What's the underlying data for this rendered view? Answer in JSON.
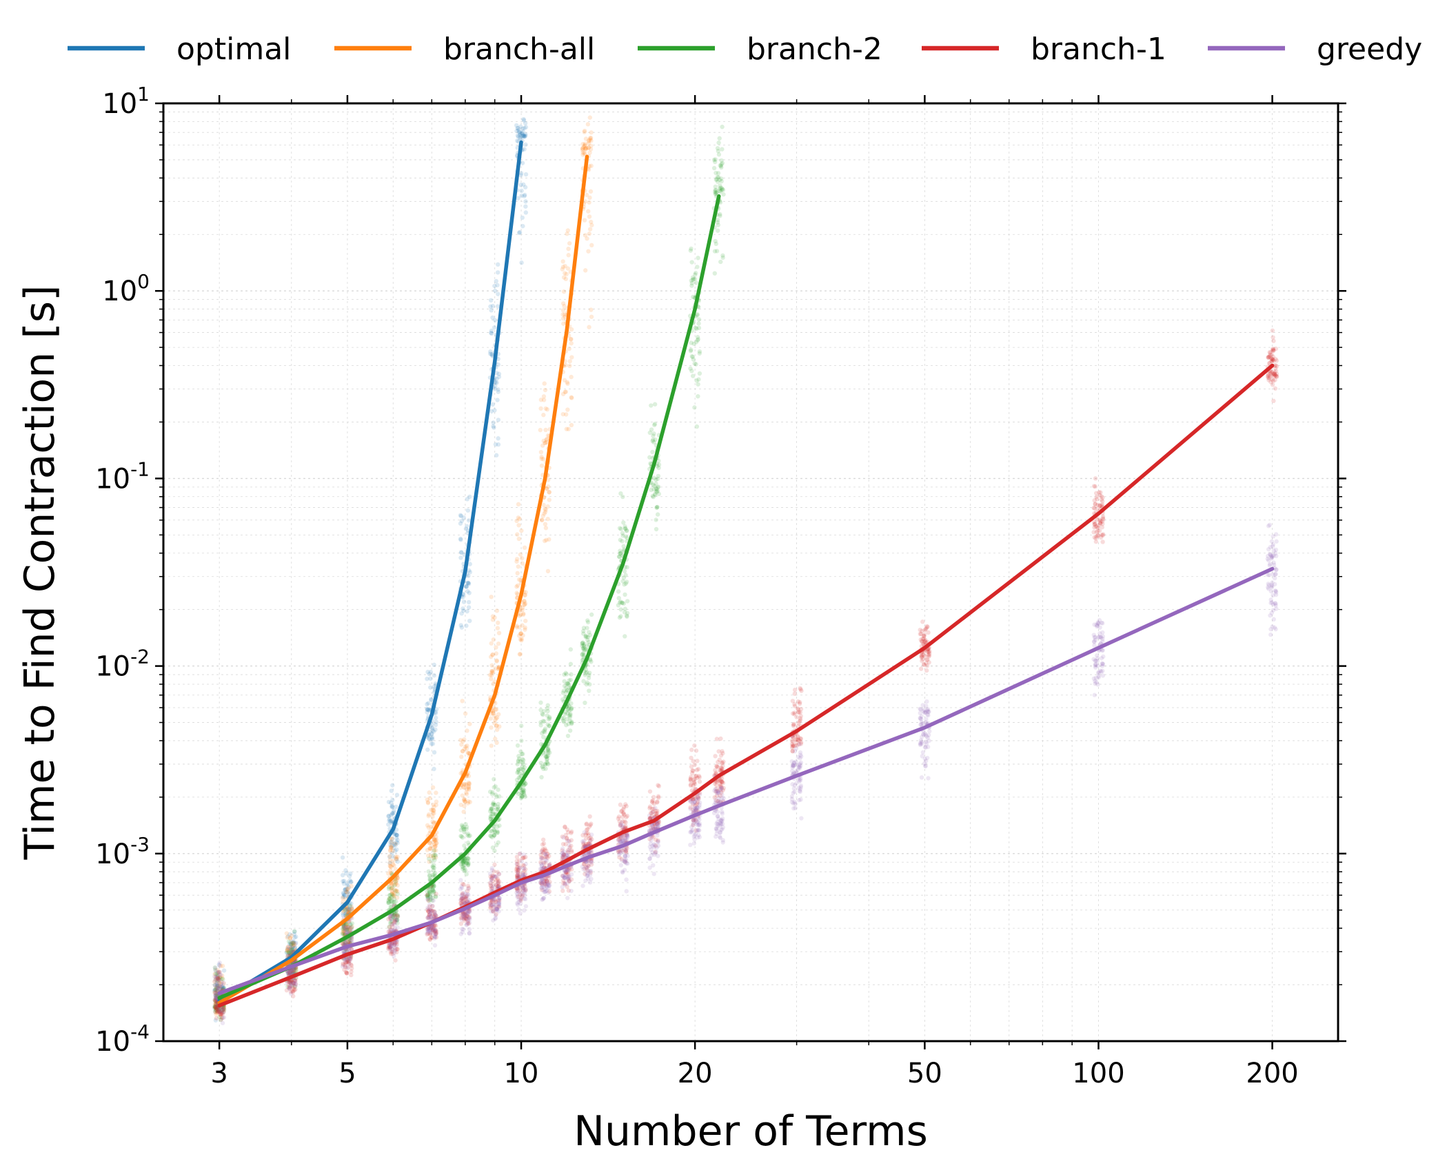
{
  "chart_data": {
    "type": "line",
    "xlabel": "Number of Terms",
    "ylabel": "Time to Find Contraction [s]",
    "xscale": "log",
    "yscale": "log",
    "xlim": [
      2.4,
      260
    ],
    "ylim": [
      0.0001,
      10
    ],
    "x_ticks": [
      3,
      5,
      10,
      20,
      50,
      100,
      200
    ],
    "x_tick_labels": [
      "3",
      "5",
      "10",
      "20",
      "50",
      "100",
      "200"
    ],
    "y_ticks": [
      0.0001,
      0.001,
      0.01,
      0.1,
      1,
      10
    ],
    "y_tick_base": [
      "10",
      "10",
      "10",
      "10",
      "10",
      "10"
    ],
    "y_tick_exp": [
      "-4",
      "-3",
      "-2",
      "-1",
      "0",
      "1"
    ],
    "grid": true,
    "legend_position": "top",
    "series": [
      {
        "name": "optimal",
        "color": "#1f77b4",
        "x": [
          3,
          4,
          5,
          6,
          7,
          8,
          9,
          10
        ],
        "y": [
          0.000165,
          0.00028,
          0.00055,
          0.00135,
          0.0055,
          0.032,
          0.42,
          6.2
        ],
        "scatter_spread": [
          [
            0.00012,
            0.00032
          ],
          [
            0.0002,
            0.00045
          ],
          [
            0.00035,
            0.001
          ],
          [
            0.0008,
            0.0025
          ],
          [
            0.0025,
            0.012
          ],
          [
            0.012,
            0.12
          ],
          [
            0.08,
            2.5
          ],
          [
            1.0,
            9.5
          ]
        ]
      },
      {
        "name": "branch-all",
        "color": "#ff7f0e",
        "x": [
          3,
          4,
          5,
          6,
          7,
          8,
          9,
          10,
          11,
          12,
          13
        ],
        "y": [
          0.00016,
          0.00027,
          0.00045,
          0.00075,
          0.00125,
          0.0027,
          0.007,
          0.024,
          0.1,
          0.62,
          5.2
        ],
        "scatter_spread": [
          [
            0.00012,
            0.0003
          ],
          [
            0.0002,
            0.0004
          ],
          [
            0.0003,
            0.0008
          ],
          [
            0.0005,
            0.0015
          ],
          [
            0.0008,
            0.003
          ],
          [
            0.0015,
            0.008
          ],
          [
            0.003,
            0.03
          ],
          [
            0.008,
            0.15
          ],
          [
            0.02,
            0.7
          ],
          [
            0.08,
            4.0
          ],
          [
            0.5,
            9.5
          ]
        ]
      },
      {
        "name": "branch-2",
        "color": "#2ca02c",
        "x": [
          3,
          4,
          5,
          6,
          7,
          8,
          9,
          10,
          11,
          12,
          13,
          15,
          17,
          20,
          22
        ],
        "y": [
          0.00017,
          0.00025,
          0.00036,
          0.0005,
          0.0007,
          0.001,
          0.0015,
          0.0024,
          0.0038,
          0.0065,
          0.011,
          0.035,
          0.12,
          0.8,
          3.2
        ],
        "scatter_spread": [
          [
            0.00012,
            0.0003
          ],
          [
            0.00018,
            0.0004
          ],
          [
            0.00025,
            0.0006
          ],
          [
            0.00035,
            0.0009
          ],
          [
            0.0005,
            0.0013
          ],
          [
            0.0007,
            0.002
          ],
          [
            0.001,
            0.003
          ],
          [
            0.0015,
            0.005
          ],
          [
            0.0022,
            0.008
          ],
          [
            0.0035,
            0.014
          ],
          [
            0.006,
            0.022
          ],
          [
            0.012,
            0.1
          ],
          [
            0.04,
            0.3
          ],
          [
            0.15,
            2.5
          ],
          [
            0.8,
            9.0
          ]
        ]
      },
      {
        "name": "branch-1",
        "color": "#d62728",
        "x": [
          3,
          4,
          5,
          6,
          7,
          8,
          9,
          10,
          11,
          12,
          13,
          15,
          17,
          20,
          22,
          30,
          50,
          100,
          200
        ],
        "y": [
          0.000155,
          0.00022,
          0.00029,
          0.00035,
          0.00043,
          0.00052,
          0.00062,
          0.00072,
          0.0008,
          0.00092,
          0.00105,
          0.0013,
          0.0015,
          0.0021,
          0.0026,
          0.0045,
          0.0125,
          0.065,
          0.4
        ],
        "scatter_spread": [
          [
            0.00012,
            0.0003
          ],
          [
            0.00016,
            0.0004
          ],
          [
            0.0002,
            0.0005
          ],
          [
            0.00025,
            0.0006
          ],
          [
            0.0003,
            0.0007
          ],
          [
            0.00036,
            0.0008
          ],
          [
            0.00042,
            0.001
          ],
          [
            0.0005,
            0.0012
          ],
          [
            0.00055,
            0.0014
          ],
          [
            0.0006,
            0.0016
          ],
          [
            0.00065,
            0.0018
          ],
          [
            0.0008,
            0.0022
          ],
          [
            0.001,
            0.0025
          ],
          [
            0.0012,
            0.0045
          ],
          [
            0.0015,
            0.005
          ],
          [
            0.003,
            0.009
          ],
          [
            0.009,
            0.022
          ],
          [
            0.035,
            0.12
          ],
          [
            0.24,
            0.65
          ]
        ]
      },
      {
        "name": "greedy",
        "color": "#9467bd",
        "x": [
          3,
          4,
          5,
          6,
          7,
          8,
          9,
          10,
          11,
          12,
          13,
          15,
          17,
          20,
          22,
          30,
          50,
          100,
          200
        ],
        "y": [
          0.00018,
          0.00025,
          0.00032,
          0.00037,
          0.00043,
          0.00051,
          0.0006,
          0.0007,
          0.00077,
          0.00086,
          0.00095,
          0.0011,
          0.0013,
          0.0016,
          0.0018,
          0.0026,
          0.0047,
          0.0125,
          0.033
        ],
        "scatter_spread": [
          [
            0.00012,
            0.00032
          ],
          [
            0.00016,
            0.0004
          ],
          [
            0.00022,
            0.00055
          ],
          [
            0.00026,
            0.0006
          ],
          [
            0.0003,
            0.0007
          ],
          [
            0.00034,
            0.0008
          ],
          [
            0.0004,
            0.00095
          ],
          [
            0.00045,
            0.0011
          ],
          [
            0.0005,
            0.0012
          ],
          [
            0.00052,
            0.0013
          ],
          [
            0.00055,
            0.0014
          ],
          [
            0.0006,
            0.0016
          ],
          [
            0.0007,
            0.0018
          ],
          [
            0.0009,
            0.0025
          ],
          [
            0.001,
            0.0028
          ],
          [
            0.0013,
            0.0045
          ],
          [
            0.0022,
            0.0075
          ],
          [
            0.0048,
            0.022
          ],
          [
            0.011,
            0.065
          ]
        ]
      }
    ]
  }
}
